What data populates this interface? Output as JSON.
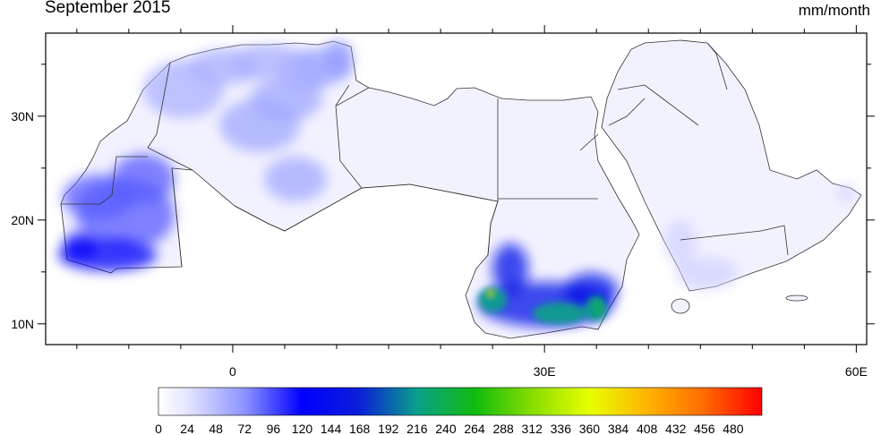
{
  "title": "September 2015",
  "units": "mm/month",
  "map": {
    "lon_range": [
      -18,
      61
    ],
    "lat_range": [
      8,
      38
    ],
    "lon_ticks": [
      {
        "value": 0,
        "label": "0"
      },
      {
        "value": 30,
        "label": "30E"
      },
      {
        "value": 60,
        "label": "60E"
      }
    ],
    "lat_ticks": [
      {
        "value": 10,
        "label": "10N"
      },
      {
        "value": 20,
        "label": "20N"
      },
      {
        "value": 30,
        "label": "30N"
      }
    ],
    "minor_tick_step_deg": 5,
    "colors": {
      "land_fill": "#f2f2ff",
      "border": "#333333",
      "frame": "#000000"
    },
    "regions": [
      {
        "name": "moroccan-atlas-rain",
        "intensity": 55
      },
      {
        "name": "algerian-coast-rain",
        "intensity": 60
      },
      {
        "name": "tunisia-rain",
        "intensity": 70
      },
      {
        "name": "mauritania-sahel-rain",
        "intensity": 90
      },
      {
        "name": "senegal-river-rain",
        "intensity": 125
      },
      {
        "name": "south-sudan-border-rain",
        "intensity": 150
      },
      {
        "name": "darfur-heavy-rain",
        "intensity": 215
      },
      {
        "name": "darfur-peak-rain",
        "intensity": 380
      },
      {
        "name": "ethiopia-border-rain",
        "intensity": 230
      },
      {
        "name": "yemen-highlands-rain",
        "intensity": 35
      }
    ]
  },
  "colorbar": {
    "min": 0,
    "max": 504,
    "tick_labels": [
      "0",
      "24",
      "48",
      "72",
      "96",
      "120",
      "144",
      "168",
      "192",
      "216",
      "240",
      "264",
      "288",
      "312",
      "336",
      "360",
      "384",
      "408",
      "432",
      "456",
      "480"
    ],
    "stops": [
      {
        "value": 0,
        "color": "#ffffff"
      },
      {
        "value": 24,
        "color": "#e4e6ff"
      },
      {
        "value": 72,
        "color": "#8c93ff"
      },
      {
        "value": 120,
        "color": "#0000ff"
      },
      {
        "value": 168,
        "color": "#0a1fd8"
      },
      {
        "value": 216,
        "color": "#0aa08a"
      },
      {
        "value": 264,
        "color": "#10bb10"
      },
      {
        "value": 312,
        "color": "#88dd00"
      },
      {
        "value": 360,
        "color": "#e8ff00"
      },
      {
        "value": 408,
        "color": "#ffb400"
      },
      {
        "value": 456,
        "color": "#ff6a00"
      },
      {
        "value": 504,
        "color": "#ff0000"
      }
    ]
  }
}
